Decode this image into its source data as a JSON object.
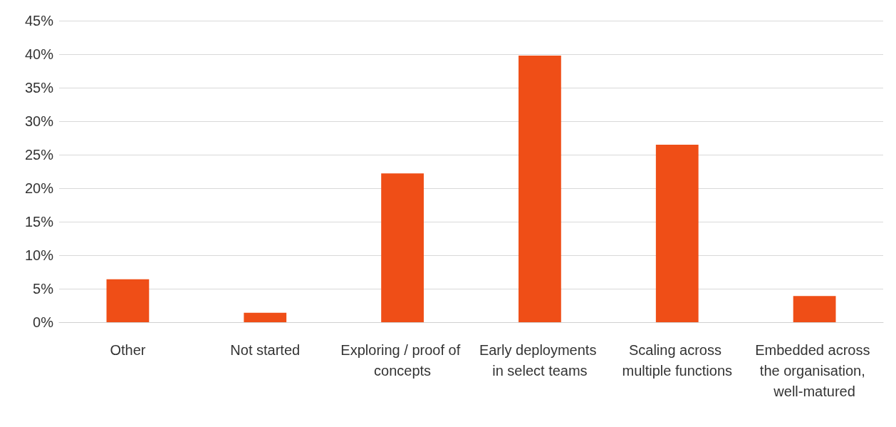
{
  "chart_data": {
    "type": "bar",
    "categories": [
      "Other",
      "Not started",
      "Exploring / proof of concepts",
      "Early deployments in select teams",
      "Scaling across multiple functions",
      "Embedded across the organisation, well-matured"
    ],
    "values": [
      6.4,
      1.4,
      22.2,
      39.8,
      26.5,
      3.9
    ],
    "color": "#ef4e17",
    "ylim": [
      0,
      45
    ],
    "yticks": [
      {
        "value": 0,
        "label": "0%"
      },
      {
        "value": 5,
        "label": "5%"
      },
      {
        "value": 10,
        "label": "10%"
      },
      {
        "value": 15,
        "label": "15%"
      },
      {
        "value": 20,
        "label": "20%"
      },
      {
        "value": 25,
        "label": "25%"
      },
      {
        "value": 30,
        "label": "30%"
      },
      {
        "value": 35,
        "label": "35%"
      },
      {
        "value": 40,
        "label": "40%"
      },
      {
        "value": 45,
        "label": "45%"
      }
    ],
    "grid": "y"
  }
}
